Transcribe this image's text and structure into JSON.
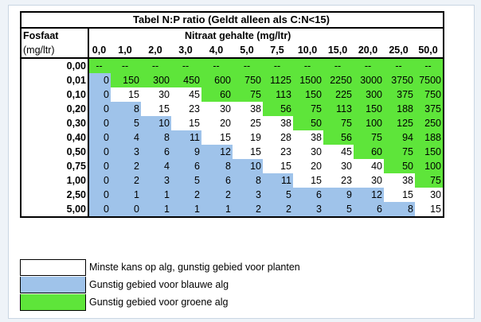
{
  "title": "Tabel N:P ratio (Geldt alleen als C:N<15)",
  "row_header_line1": "Fosfaat",
  "row_header_line2": "(mg/ltr)",
  "col_group_header": "Nitraat gehalte (mg/ltr)",
  "columns": [
    "0,0",
    "1,0",
    "2,0",
    "3,0",
    "4,0",
    "5,0",
    "7,5",
    "10,0",
    "15,0",
    "20,0",
    "25,0",
    "50,0"
  ],
  "rows": [
    {
      "label": "0,00",
      "cells": [
        "--",
        "--",
        "--",
        "--",
        "--",
        "--",
        "--",
        "--",
        "--",
        "--",
        "--",
        "--"
      ]
    },
    {
      "label": "0,01",
      "cells": [
        "0",
        "150",
        "300",
        "450",
        "600",
        "750",
        "1125",
        "1500",
        "2250",
        "3000",
        "3750",
        "7500"
      ]
    },
    {
      "label": "0,10",
      "cells": [
        "0",
        "15",
        "30",
        "45",
        "60",
        "75",
        "113",
        "150",
        "225",
        "300",
        "375",
        "750"
      ]
    },
    {
      "label": "0,20",
      "cells": [
        "0",
        "8",
        "15",
        "23",
        "30",
        "38",
        "56",
        "75",
        "113",
        "150",
        "188",
        "375"
      ]
    },
    {
      "label": "0,30",
      "cells": [
        "0",
        "5",
        "10",
        "15",
        "20",
        "25",
        "38",
        "50",
        "75",
        "100",
        "125",
        "250"
      ]
    },
    {
      "label": "0,40",
      "cells": [
        "0",
        "4",
        "8",
        "11",
        "15",
        "19",
        "28",
        "38",
        "56",
        "75",
        "94",
        "188"
      ]
    },
    {
      "label": "0,50",
      "cells": [
        "0",
        "3",
        "6",
        "9",
        "12",
        "15",
        "23",
        "30",
        "45",
        "60",
        "75",
        "150"
      ]
    },
    {
      "label": "0,75",
      "cells": [
        "0",
        "2",
        "4",
        "6",
        "8",
        "10",
        "15",
        "20",
        "30",
        "40",
        "50",
        "100"
      ]
    },
    {
      "label": "1,00",
      "cells": [
        "0",
        "2",
        "3",
        "5",
        "6",
        "8",
        "11",
        "15",
        "23",
        "30",
        "38",
        "75"
      ]
    },
    {
      "label": "2,50",
      "cells": [
        "0",
        "1",
        "1",
        "2",
        "2",
        "3",
        "5",
        "6",
        "9",
        "12",
        "15",
        "30"
      ]
    },
    {
      "label": "5,00",
      "cells": [
        "0",
        "0",
        "1",
        "1",
        "1",
        "2",
        "2",
        "3",
        "5",
        "6",
        "8",
        "15"
      ]
    }
  ],
  "cell_colors": [
    [
      "g",
      "g",
      "g",
      "g",
      "g",
      "g",
      "g",
      "g",
      "g",
      "g",
      "g",
      "g"
    ],
    [
      "b",
      "g",
      "g",
      "g",
      "g",
      "g",
      "g",
      "g",
      "g",
      "g",
      "g",
      "g"
    ],
    [
      "b",
      "w",
      "w",
      "w",
      "g",
      "g",
      "g",
      "g",
      "g",
      "g",
      "g",
      "g"
    ],
    [
      "b",
      "b",
      "w",
      "w",
      "w",
      "w",
      "g",
      "g",
      "g",
      "g",
      "g",
      "g"
    ],
    [
      "b",
      "b",
      "b",
      "w",
      "w",
      "w",
      "w",
      "g",
      "g",
      "g",
      "g",
      "g"
    ],
    [
      "b",
      "b",
      "b",
      "b",
      "w",
      "w",
      "w",
      "w",
      "g",
      "g",
      "g",
      "g"
    ],
    [
      "b",
      "b",
      "b",
      "b",
      "b",
      "w",
      "w",
      "w",
      "w",
      "g",
      "g",
      "g"
    ],
    [
      "b",
      "b",
      "b",
      "b",
      "b",
      "b",
      "w",
      "w",
      "w",
      "w",
      "g",
      "g"
    ],
    [
      "b",
      "b",
      "b",
      "b",
      "b",
      "b",
      "b",
      "w",
      "w",
      "w",
      "w",
      "g"
    ],
    [
      "b",
      "b",
      "b",
      "b",
      "b",
      "b",
      "b",
      "b",
      "b",
      "b",
      "w",
      "w"
    ],
    [
      "b",
      "b",
      "b",
      "b",
      "b",
      "b",
      "b",
      "b",
      "b",
      "b",
      "b",
      "w"
    ]
  ],
  "legend": [
    {
      "color": "#ffffff",
      "label": "Minste kans op alg, gunstig gebied voor planten"
    },
    {
      "color": "#9fc3ea",
      "label": "Gunstig gebied voor blauwe alg"
    },
    {
      "color": "#5ee53a",
      "label": "Gunstig gebied voor groene alg"
    }
  ]
}
